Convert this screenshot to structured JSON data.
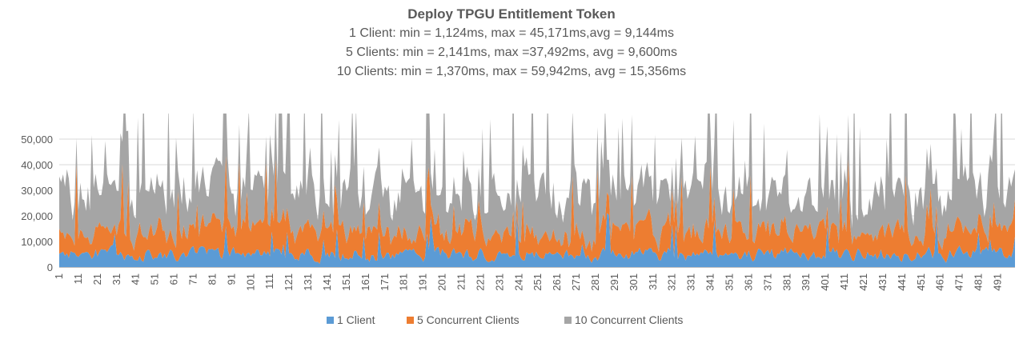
{
  "chart_data": {
    "type": "area",
    "stacked": true,
    "title": "Deploy TPGU Entitlement Token",
    "subtitles": [
      "1 Client: min = 1,124ms, max = 45,171ms,avg = 9,144ms",
      "5 Clients: min = 2,141ms, max =37,492ms, avg = 9,600ms",
      "10 Clients: min = 1,370ms, max = 59,942ms, avg = 15,356ms"
    ],
    "xlabel": "",
    "ylabel": "",
    "ylim": [
      0,
      60000
    ],
    "yticks": [
      0,
      10000,
      20000,
      30000,
      40000,
      50000
    ],
    "ytick_labels": [
      "0",
      "10,000",
      "20,000",
      "30,000",
      "40,000",
      "50,000"
    ],
    "x_range": [
      1,
      500
    ],
    "xtick_labels": [
      "1",
      "11",
      "21",
      "31",
      "41",
      "51",
      "61",
      "71",
      "81",
      "91",
      "101",
      "111",
      "121",
      "131",
      "141",
      "151",
      "161",
      "171",
      "181",
      "191",
      "201",
      "211",
      "221",
      "231",
      "241",
      "251",
      "261",
      "271",
      "281",
      "291",
      "301",
      "311",
      "321",
      "331",
      "341",
      "351",
      "361",
      "371",
      "381",
      "391",
      "401",
      "411",
      "421",
      "431",
      "441",
      "451",
      "461",
      "471",
      "481",
      "491"
    ],
    "grid": true,
    "legend_position": "bottom",
    "series": [
      {
        "name": "1 Client",
        "color": "#5B9BD5",
        "min": 1124,
        "max": 45171,
        "avg": 9144
      },
      {
        "name": "5 Concurrent Clients",
        "color": "#ED7D31",
        "min": 2141,
        "max": 37492,
        "avg": 9600
      },
      {
        "name": "10 Concurrent Clients",
        "color": "#A5A5A5",
        "min": 1370,
        "max": 59942,
        "avg": 15356
      }
    ]
  }
}
